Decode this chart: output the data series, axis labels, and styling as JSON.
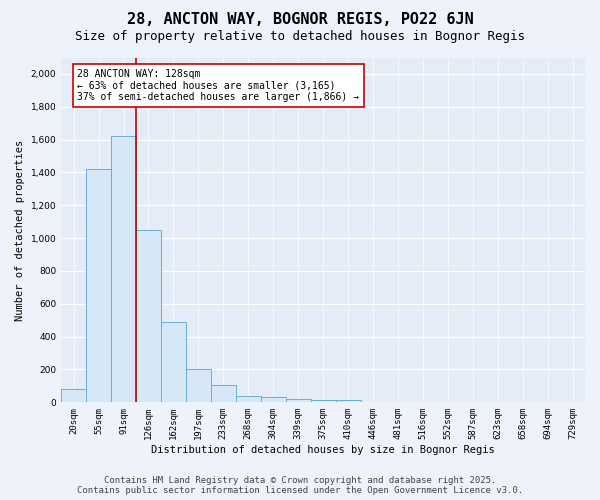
{
  "title1": "28, ANCTON WAY, BOGNOR REGIS, PO22 6JN",
  "title2": "Size of property relative to detached houses in Bognor Regis",
  "xlabel": "Distribution of detached houses by size in Bognor Regis",
  "ylabel": "Number of detached properties",
  "categories": [
    "20sqm",
    "55sqm",
    "91sqm",
    "126sqm",
    "162sqm",
    "197sqm",
    "233sqm",
    "268sqm",
    "304sqm",
    "339sqm",
    "375sqm",
    "410sqm",
    "446sqm",
    "481sqm",
    "516sqm",
    "552sqm",
    "587sqm",
    "623sqm",
    "658sqm",
    "694sqm",
    "729sqm"
  ],
  "values": [
    80,
    1420,
    1620,
    1050,
    490,
    205,
    105,
    40,
    30,
    20,
    15,
    15,
    5,
    3,
    2,
    1,
    1,
    1,
    0,
    0,
    0
  ],
  "bar_color": "#d6e8f7",
  "bar_edge_color": "#6aaed6",
  "vline_color": "#cc0000",
  "annotation_text": "28 ANCTON WAY: 128sqm\n← 63% of detached houses are smaller (3,165)\n37% of semi-detached houses are larger (1,866) →",
  "annotation_box_color": "#cc0000",
  "ylim": [
    0,
    2100
  ],
  "yticks": [
    0,
    200,
    400,
    600,
    800,
    1000,
    1200,
    1400,
    1600,
    1800,
    2000
  ],
  "footer1": "Contains HM Land Registry data © Crown copyright and database right 2025.",
  "footer2": "Contains public sector information licensed under the Open Government Licence v3.0.",
  "bg_color": "#eef2fb",
  "plot_bg_color": "#e4ecf7",
  "grid_color": "#ffffff",
  "title1_fontsize": 11,
  "title2_fontsize": 9,
  "axis_fontsize": 7.5,
  "tick_fontsize": 6.5,
  "annotation_fontsize": 7,
  "footer_fontsize": 6.5
}
